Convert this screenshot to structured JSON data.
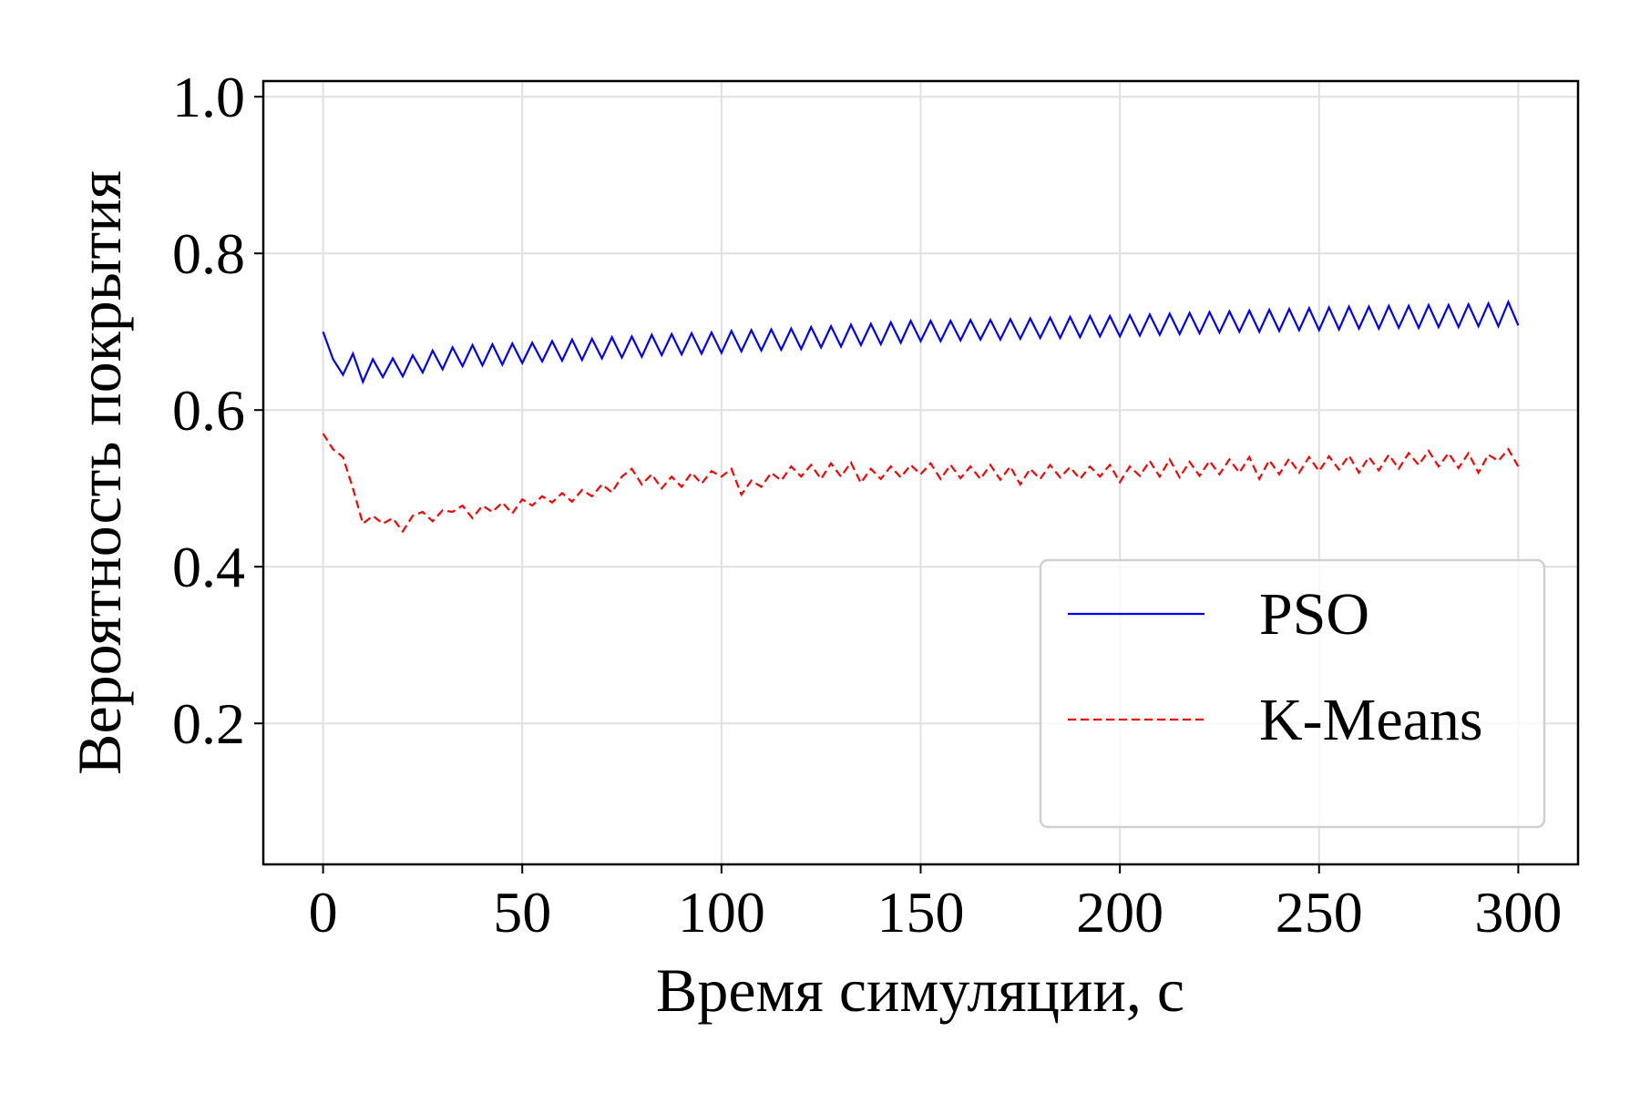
{
  "chart_data": {
    "type": "line",
    "xlabel": "Время симуляции, с",
    "ylabel": "Вероятность покрытия",
    "xlim": [
      -15,
      315
    ],
    "ylim": [
      0.02,
      1.02
    ],
    "xticks": [
      0,
      50,
      100,
      150,
      200,
      250,
      300
    ],
    "yticks": [
      0.2,
      0.4,
      0.6,
      0.8,
      {
        "value": 1,
        "label": "1.0"
      }
    ],
    "grid": true,
    "legend": "lower right",
    "x": [
      0,
      2.5,
      5,
      7.5,
      10,
      12.5,
      15,
      17.5,
      20,
      22.5,
      25,
      27.5,
      30,
      32.5,
      35,
      37.5,
      40,
      42.5,
      45,
      47.5,
      50,
      52.5,
      55,
      57.5,
      60,
      62.5,
      65,
      67.5,
      70,
      72.5,
      75,
      77.5,
      80,
      82.5,
      85,
      87.5,
      90,
      92.5,
      95,
      97.5,
      100,
      102.5,
      105,
      107.5,
      110,
      112.5,
      115,
      117.5,
      120,
      122.5,
      125,
      127.5,
      130,
      132.5,
      135,
      137.5,
      140,
      142.5,
      145,
      147.5,
      150,
      152.5,
      155,
      157.5,
      160,
      162.5,
      165,
      167.5,
      170,
      172.5,
      175,
      177.5,
      180,
      182.5,
      185,
      187.5,
      190,
      192.5,
      195,
      197.5,
      200,
      202.5,
      205,
      207.5,
      210,
      212.5,
      215,
      217.5,
      220,
      222.5,
      225,
      227.5,
      230,
      232.5,
      235,
      237.5,
      240,
      242.5,
      245,
      247.5,
      250,
      252.5,
      255,
      257.5,
      260,
      262.5,
      265,
      267.5,
      270,
      272.5,
      275,
      277.5,
      280,
      282.5,
      285,
      287.5,
      290,
      292.5,
      295,
      297.5,
      300
    ],
    "series": [
      {
        "name": "PSO",
        "color": "#0000ff",
        "linestyle": "solid",
        "values": [
          0.7,
          0.665,
          0.645,
          0.672,
          0.636,
          0.665,
          0.642,
          0.666,
          0.643,
          0.67,
          0.648,
          0.676,
          0.652,
          0.68,
          0.656,
          0.683,
          0.657,
          0.684,
          0.658,
          0.685,
          0.66,
          0.686,
          0.662,
          0.688,
          0.663,
          0.69,
          0.664,
          0.691,
          0.666,
          0.693,
          0.667,
          0.694,
          0.668,
          0.696,
          0.67,
          0.697,
          0.671,
          0.698,
          0.672,
          0.699,
          0.673,
          0.701,
          0.675,
          0.702,
          0.676,
          0.703,
          0.677,
          0.704,
          0.678,
          0.706,
          0.68,
          0.707,
          0.681,
          0.709,
          0.683,
          0.71,
          0.684,
          0.712,
          0.686,
          0.714,
          0.688,
          0.714,
          0.688,
          0.714,
          0.689,
          0.715,
          0.69,
          0.715,
          0.69,
          0.716,
          0.691,
          0.717,
          0.692,
          0.718,
          0.692,
          0.719,
          0.693,
          0.72,
          0.694,
          0.72,
          0.694,
          0.721,
          0.695,
          0.722,
          0.696,
          0.723,
          0.697,
          0.724,
          0.698,
          0.725,
          0.699,
          0.726,
          0.7,
          0.727,
          0.7,
          0.728,
          0.701,
          0.729,
          0.702,
          0.73,
          0.702,
          0.731,
          0.703,
          0.732,
          0.704,
          0.732,
          0.704,
          0.733,
          0.705,
          0.733,
          0.705,
          0.734,
          0.706,
          0.734,
          0.706,
          0.735,
          0.707,
          0.736,
          0.707,
          0.738,
          0.708
        ]
      },
      {
        "name": "K-Means",
        "color": "#ff0000",
        "linestyle": "dashed",
        "values": [
          0.57,
          0.55,
          0.54,
          0.5,
          0.455,
          0.465,
          0.455,
          0.462,
          0.445,
          0.465,
          0.47,
          0.458,
          0.472,
          0.47,
          0.478,
          0.462,
          0.478,
          0.47,
          0.482,
          0.468,
          0.486,
          0.478,
          0.49,
          0.482,
          0.494,
          0.483,
          0.498,
          0.49,
          0.505,
          0.495,
          0.515,
          0.525,
          0.505,
          0.518,
          0.5,
          0.515,
          0.502,
          0.52,
          0.506,
          0.522,
          0.515,
          0.525,
          0.492,
          0.51,
          0.502,
          0.52,
          0.51,
          0.528,
          0.515,
          0.53,
          0.512,
          0.532,
          0.515,
          0.533,
          0.507,
          0.525,
          0.512,
          0.528,
          0.514,
          0.53,
          0.518,
          0.532,
          0.512,
          0.53,
          0.513,
          0.528,
          0.512,
          0.53,
          0.511,
          0.528,
          0.505,
          0.525,
          0.512,
          0.53,
          0.514,
          0.527,
          0.512,
          0.528,
          0.515,
          0.53,
          0.508,
          0.528,
          0.516,
          0.535,
          0.515,
          0.537,
          0.514,
          0.534,
          0.516,
          0.535,
          0.518,
          0.537,
          0.52,
          0.54,
          0.512,
          0.536,
          0.518,
          0.538,
          0.52,
          0.54,
          0.522,
          0.541,
          0.524,
          0.542,
          0.52,
          0.54,
          0.523,
          0.543,
          0.525,
          0.545,
          0.53,
          0.548,
          0.528,
          0.545,
          0.526,
          0.545,
          0.52,
          0.543,
          0.535,
          0.55,
          0.528
        ]
      }
    ]
  }
}
